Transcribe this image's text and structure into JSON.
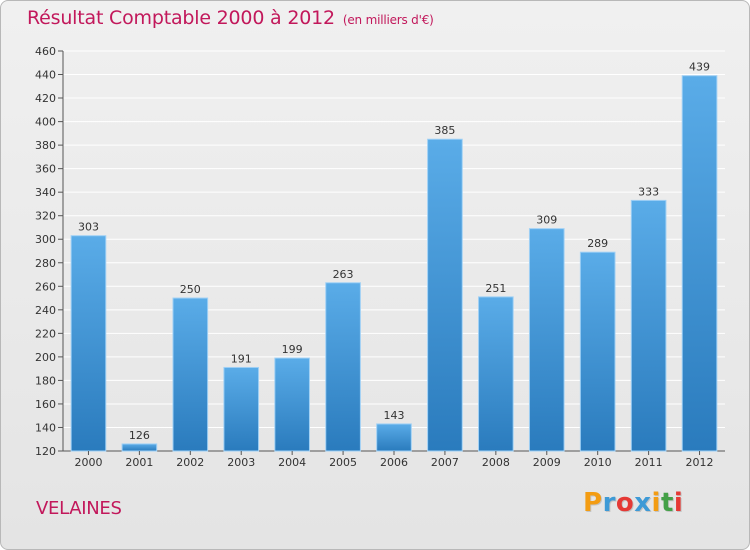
{
  "header": {
    "title": "Résultat Comptable 2000 à 2012",
    "subtitle": "(en milliers d'€)"
  },
  "footer": {
    "commune": "VELAINES",
    "brand_letters": [
      {
        "ch": "P",
        "color": "#f39c12"
      },
      {
        "ch": "r",
        "color": "#3e9ad6"
      },
      {
        "ch": "o",
        "color": "#e53935"
      },
      {
        "ch": "x",
        "color": "#3e9ad6"
      },
      {
        "ch": "i",
        "color": "#f39c12"
      },
      {
        "ch": "t",
        "color": "#43a047"
      },
      {
        "ch": "i",
        "color": "#e53935"
      }
    ]
  },
  "colors": {
    "bar_top": "#5aace8",
    "bar_bottom": "#2a7bbd",
    "title": "#c2185b",
    "grid": "#ffffff",
    "text": "#333333"
  },
  "chart_data": {
    "type": "bar",
    "title": "Résultat Comptable 2000 à 2012",
    "subtitle": "(en milliers d'€)",
    "categories": [
      "2000",
      "2001",
      "2002",
      "2003",
      "2004",
      "2005",
      "2006",
      "2007",
      "2008",
      "2009",
      "2010",
      "2011",
      "2012"
    ],
    "values": [
      303,
      126,
      250,
      191,
      199,
      263,
      143,
      385,
      251,
      309,
      289,
      333,
      439
    ],
    "ylim": [
      120,
      460
    ],
    "yticks": [
      120,
      140,
      160,
      180,
      200,
      220,
      240,
      260,
      280,
      300,
      320,
      340,
      360,
      380,
      400,
      420,
      440,
      460
    ],
    "grid": true,
    "data_labels": true
  }
}
